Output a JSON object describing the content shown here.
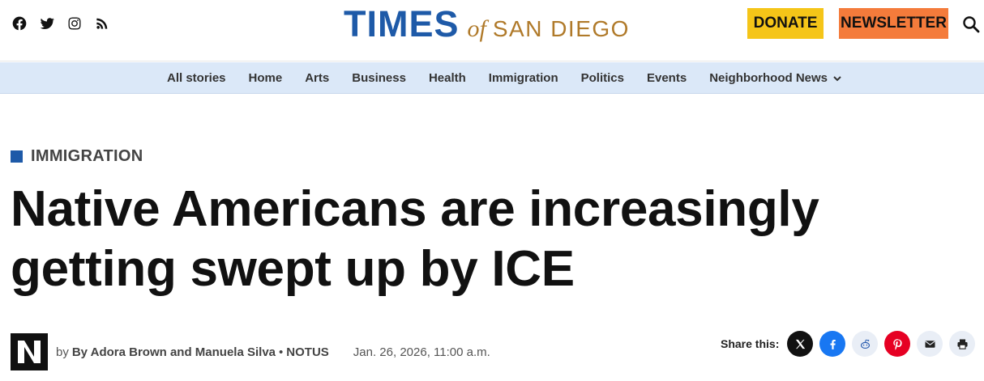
{
  "header": {
    "social_icons": [
      "facebook-icon",
      "twitter-icon",
      "instagram-icon",
      "rss-icon"
    ],
    "logo": {
      "times": "TIMES",
      "of": "of",
      "city": "SAN DIEGO"
    },
    "donate_label": "DONATE",
    "newsletter_label": "NEWSLETTER",
    "colors": {
      "brand_blue": "#1e5aa8",
      "brand_gold": "#b07a2a",
      "donate": "#f5c518",
      "newsletter": "#f47b3b"
    }
  },
  "nav": {
    "items": [
      {
        "label": "All stories"
      },
      {
        "label": "Home"
      },
      {
        "label": "Arts"
      },
      {
        "label": "Business"
      },
      {
        "label": "Health"
      },
      {
        "label": "Immigration"
      },
      {
        "label": "Politics"
      },
      {
        "label": "Events"
      },
      {
        "label": "Neighborhood News"
      }
    ]
  },
  "article": {
    "category": "IMMIGRATION",
    "headline": "Native Americans are increasingly getting swept up by ICE",
    "byline": {
      "prefix": "by",
      "authors": "By Adora Brown and Manuela Silva",
      "separator": "•",
      "outlet": "NOTUS",
      "date": "Jan. 26, 2026, 11:00 a.m."
    },
    "share": {
      "label": "Share this:",
      "buttons": [
        "x-icon",
        "facebook-icon",
        "reddit-icon",
        "pinterest-icon",
        "email-icon",
        "print-icon"
      ]
    }
  }
}
